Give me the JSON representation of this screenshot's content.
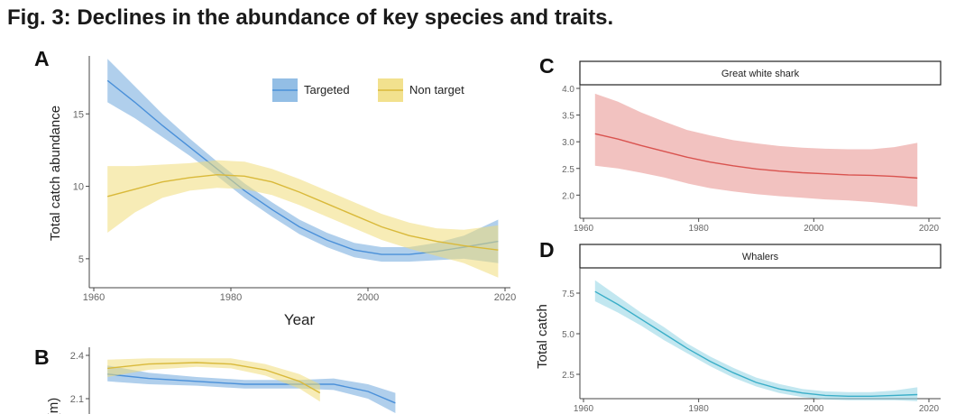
{
  "figure": {
    "title": "Fig. 3: Declines in the abundance of key species and traits."
  },
  "colors": {
    "targeted": "#4a90d9",
    "targeted_band": "#6fa8dc",
    "non_target": "#d9b93a",
    "non_target_band": "#f0dc7a",
    "shark": "#d9534f",
    "shark_band": "#e8908c",
    "whalers": "#3aaec8",
    "whalers_band": "#8fd3e3"
  },
  "chart_data": [
    {
      "panel": "A",
      "type": "line",
      "xlabel": "Year",
      "ylabel": "Total catch abundance",
      "xlim": [
        1960,
        2020
      ],
      "ylim": [
        3.0,
        19.0
      ],
      "xticks": [
        "1960",
        "1980",
        "2000",
        "2020"
      ],
      "yticks": [
        "5",
        "10",
        "15"
      ],
      "legend": [
        "Targeted",
        "Non target"
      ],
      "legend_position": "top-right",
      "series": [
        {
          "name": "Targeted",
          "x": [
            1962,
            1966,
            1970,
            1974,
            1978,
            1982,
            1986,
            1990,
            1994,
            1998,
            2002,
            2006,
            2010,
            2014,
            2019
          ],
          "y": [
            17.3,
            15.8,
            14.2,
            12.7,
            11.2,
            9.7,
            8.4,
            7.2,
            6.3,
            5.6,
            5.3,
            5.3,
            5.5,
            5.8,
            6.2
          ],
          "lower": [
            15.8,
            14.7,
            13.4,
            12.1,
            10.7,
            9.2,
            7.9,
            6.7,
            5.8,
            5.1,
            4.8,
            4.8,
            4.9,
            5.0,
            4.7
          ],
          "upper": [
            18.8,
            16.9,
            15.0,
            13.3,
            11.7,
            10.2,
            8.9,
            7.7,
            6.8,
            6.1,
            5.8,
            5.8,
            6.1,
            6.6,
            7.7
          ]
        },
        {
          "name": "Non target",
          "x": [
            1962,
            1966,
            1970,
            1974,
            1978,
            1982,
            1986,
            1990,
            1994,
            1998,
            2002,
            2006,
            2010,
            2014,
            2019
          ],
          "y": [
            9.3,
            9.8,
            10.3,
            10.6,
            10.8,
            10.7,
            10.3,
            9.6,
            8.8,
            8.0,
            7.2,
            6.6,
            6.2,
            5.9,
            5.6
          ],
          "lower": [
            6.8,
            8.2,
            9.2,
            9.7,
            9.9,
            9.8,
            9.4,
            8.7,
            7.9,
            7.1,
            6.3,
            5.7,
            5.2,
            4.7,
            3.7
          ],
          "upper": [
            11.4,
            11.4,
            11.5,
            11.6,
            11.8,
            11.7,
            11.2,
            10.5,
            9.7,
            8.9,
            8.1,
            7.5,
            7.1,
            7.0,
            7.3
          ]
        }
      ]
    },
    {
      "panel": "B",
      "type": "line",
      "ylabel": "(m)",
      "xlim": [
        1960,
        2020
      ],
      "yticks": [
        "2.4",
        "2.1"
      ],
      "series": [
        {
          "name": "Targeted",
          "x": [
            1962,
            1968,
            1975,
            1982,
            1990,
            1995,
            2000,
            2004
          ],
          "y": [
            2.27,
            2.24,
            2.22,
            2.2,
            2.2,
            2.2,
            2.15,
            2.07
          ],
          "lower": [
            2.22,
            2.2,
            2.19,
            2.17,
            2.17,
            2.16,
            2.1,
            2.0
          ],
          "upper": [
            2.33,
            2.28,
            2.25,
            2.23,
            2.23,
            2.24,
            2.2,
            2.14
          ]
        },
        {
          "name": "Non target",
          "x": [
            1962,
            1968,
            1975,
            1980,
            1985,
            1990,
            1993
          ],
          "y": [
            2.31,
            2.34,
            2.35,
            2.34,
            2.3,
            2.22,
            2.14
          ],
          "lower": [
            2.25,
            2.3,
            2.32,
            2.31,
            2.26,
            2.17,
            2.08
          ],
          "upper": [
            2.37,
            2.38,
            2.38,
            2.38,
            2.34,
            2.27,
            2.2
          ]
        }
      ]
    },
    {
      "panel": "C",
      "type": "line",
      "strip_title": "Great white shark",
      "xlim": [
        1960,
        2020
      ],
      "ylim": [
        1.6,
        4.0
      ],
      "xticks": [
        "1960",
        "1980",
        "2000",
        "2020"
      ],
      "yticks": [
        "2.0",
        "2.5",
        "3.0",
        "3.5",
        "4.0"
      ],
      "series": [
        {
          "name": "Great white shark",
          "x": [
            1962,
            1966,
            1970,
            1974,
            1978,
            1982,
            1986,
            1990,
            1994,
            1998,
            2002,
            2006,
            2010,
            2014,
            2018
          ],
          "y": [
            3.15,
            3.05,
            2.93,
            2.82,
            2.71,
            2.62,
            2.55,
            2.49,
            2.45,
            2.42,
            2.4,
            2.38,
            2.37,
            2.35,
            2.32
          ],
          "lower": [
            2.55,
            2.5,
            2.42,
            2.33,
            2.22,
            2.13,
            2.07,
            2.02,
            1.98,
            1.95,
            1.92,
            1.9,
            1.87,
            1.83,
            1.78
          ],
          "upper": [
            3.9,
            3.75,
            3.55,
            3.38,
            3.22,
            3.12,
            3.03,
            2.97,
            2.92,
            2.89,
            2.87,
            2.86,
            2.86,
            2.9,
            2.98
          ]
        }
      ]
    },
    {
      "panel": "D",
      "type": "line",
      "strip_title": "Whalers",
      "ylabel": "Total catch",
      "xlim": [
        1960,
        2020
      ],
      "ylim": [
        1.0,
        8.5
      ],
      "xticks": [
        "1960",
        "1980",
        "2000",
        "2020"
      ],
      "yticks": [
        "2.5",
        "5.0",
        "7.5"
      ],
      "series": [
        {
          "name": "Whalers",
          "x": [
            1962,
            1966,
            1970,
            1974,
            1978,
            1982,
            1986,
            1990,
            1994,
            1998,
            2002,
            2006,
            2010,
            2014,
            2018
          ],
          "y": [
            7.6,
            6.8,
            5.9,
            5.0,
            4.1,
            3.3,
            2.6,
            2.0,
            1.6,
            1.35,
            1.2,
            1.15,
            1.15,
            1.2,
            1.25
          ],
          "lower": [
            7.0,
            6.3,
            5.5,
            4.6,
            3.8,
            3.0,
            2.3,
            1.75,
            1.35,
            1.1,
            0.95,
            0.9,
            0.9,
            0.9,
            0.85
          ],
          "upper": [
            8.3,
            7.3,
            6.3,
            5.4,
            4.4,
            3.6,
            2.9,
            2.3,
            1.9,
            1.6,
            1.45,
            1.4,
            1.4,
            1.5,
            1.7
          ]
        }
      ]
    }
  ]
}
